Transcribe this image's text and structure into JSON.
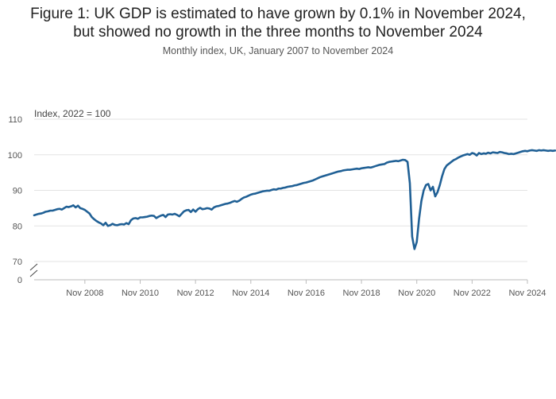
{
  "title_line1": "Figure 1: UK GDP is estimated to have grown by 0.1% in November 2024,",
  "title_line2": "but showed no growth in the three months to November 2024",
  "subtitle": "Monthly index, UK, January 2007 to November 2024",
  "colors": {
    "line": "#206095",
    "grid": "#e3e3e3",
    "axis": "#bbbbbb"
  },
  "chart_data": {
    "type": "line",
    "ylabel": "Index, 2022 = 100",
    "yticks": [
      110,
      100,
      90,
      80,
      70
    ],
    "ybreak_tick": 0,
    "ylim": [
      70,
      110
    ],
    "x_range": [
      "Jan 2007",
      "Nov 2024"
    ],
    "xticks": [
      "Nov 2008",
      "Nov 2010",
      "Nov 2012",
      "Nov 2014",
      "Nov 2016",
      "Nov 2018",
      "Nov 2020",
      "Nov 2022",
      "Nov 2024"
    ],
    "grid": true,
    "legend": "none",
    "series": [
      {
        "start": "Jan 2007",
        "frequency": "monthly",
        "values": [
          83.0,
          83.2,
          83.4,
          83.5,
          83.7,
          84.0,
          84.1,
          84.3,
          84.3,
          84.5,
          84.7,
          84.8,
          84.6,
          85.0,
          85.4,
          85.3,
          85.5,
          85.8,
          85.2,
          85.7,
          85.0,
          84.8,
          84.5,
          84.0,
          83.5,
          82.5,
          81.9,
          81.4,
          81.0,
          80.7,
          80.2,
          80.9,
          80.0,
          80.2,
          80.6,
          80.3,
          80.2,
          80.4,
          80.5,
          80.4,
          80.8,
          80.5,
          81.6,
          82.1,
          82.2,
          82.0,
          82.4,
          82.4,
          82.5,
          82.6,
          82.8,
          82.9,
          82.8,
          82.2,
          82.6,
          82.9,
          83.1,
          82.5,
          83.2,
          83.3,
          83.2,
          83.4,
          83.1,
          82.7,
          83.4,
          84.1,
          84.4,
          84.5,
          83.9,
          84.6,
          84.0,
          84.7,
          85.1,
          84.7,
          84.8,
          85.0,
          84.9,
          84.6,
          85.2,
          85.5,
          85.6,
          85.8,
          86.0,
          86.2,
          86.3,
          86.5,
          86.8,
          87.0,
          86.8,
          87.1,
          87.6,
          88.0,
          88.2,
          88.5,
          88.8,
          89.0,
          89.1,
          89.3,
          89.5,
          89.7,
          89.8,
          89.9,
          89.9,
          90.1,
          90.3,
          90.2,
          90.5,
          90.5,
          90.7,
          90.8,
          91.0,
          91.1,
          91.2,
          91.4,
          91.5,
          91.7,
          91.9,
          92.1,
          92.2,
          92.4,
          92.6,
          92.8,
          93.1,
          93.4,
          93.7,
          93.9,
          94.1,
          94.3,
          94.5,
          94.7,
          94.9,
          95.1,
          95.3,
          95.4,
          95.6,
          95.7,
          95.8,
          95.8,
          95.9,
          96.0,
          96.1,
          96.0,
          96.2,
          96.3,
          96.4,
          96.5,
          96.4,
          96.6,
          96.8,
          97.0,
          97.2,
          97.3,
          97.4,
          97.8,
          98.0,
          98.1,
          98.2,
          98.3,
          98.2,
          98.4,
          98.6,
          98.5,
          98.0,
          92.0,
          77.0,
          73.5,
          75.5,
          82.0,
          87.0,
          90.0,
          91.5,
          91.8,
          90.0,
          91.0,
          88.3,
          89.5,
          91.5,
          94.0,
          96.0,
          97.0,
          97.5,
          98.0,
          98.5,
          98.8,
          99.2,
          99.5,
          99.8,
          100.0,
          100.2,
          100.0,
          100.5,
          100.3,
          99.8,
          100.5,
          100.2,
          100.4,
          100.3,
          100.6,
          100.4,
          100.7,
          100.6,
          100.5,
          100.8,
          100.7,
          100.5,
          100.4,
          100.2,
          100.3,
          100.2,
          100.4,
          100.6,
          100.8,
          101.0,
          101.1,
          101.0,
          101.2,
          101.3,
          101.2,
          101.1,
          101.3,
          101.2,
          101.3,
          101.2,
          101.1,
          101.2,
          101.1,
          101.2
        ]
      }
    ]
  }
}
